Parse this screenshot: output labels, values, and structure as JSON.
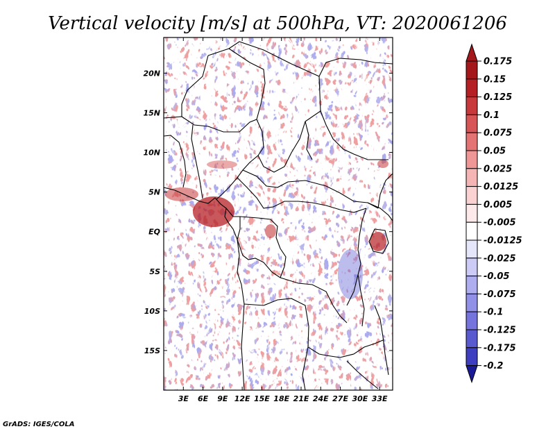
{
  "title": "Vertical velocity [m/s] at 500hPa, VT: 2020061206",
  "credit": "GrADS: IGES/COLA",
  "map": {
    "lon_range": [
      0,
      35
    ],
    "lat_range": [
      -20,
      24.5
    ],
    "lon_ticks": [
      {
        "value": 3,
        "label": "3E"
      },
      {
        "value": 6,
        "label": "6E"
      },
      {
        "value": 9,
        "label": "9E"
      },
      {
        "value": 12,
        "label": "12E"
      },
      {
        "value": 15,
        "label": "15E"
      },
      {
        "value": 18,
        "label": "18E"
      },
      {
        "value": 21,
        "label": "21E"
      },
      {
        "value": 24,
        "label": "24E"
      },
      {
        "value": 27,
        "label": "27E"
      },
      {
        "value": 30,
        "label": "30E"
      },
      {
        "value": 33,
        "label": "33E"
      }
    ],
    "lat_ticks": [
      {
        "value": 20,
        "label": "20N"
      },
      {
        "value": 15,
        "label": "15N"
      },
      {
        "value": 10,
        "label": "10N"
      },
      {
        "value": 5,
        "label": "5N"
      },
      {
        "value": 0,
        "label": "EQ"
      },
      {
        "value": -5,
        "label": "5S"
      },
      {
        "value": -10,
        "label": "10S"
      },
      {
        "value": -15,
        "label": "15S"
      }
    ]
  },
  "colorbar": {
    "levels": [
      {
        "label": "0.175",
        "color": "#a4171b"
      },
      {
        "label": "0.15",
        "color": "#b52024"
      },
      {
        "label": "0.125",
        "color": "#c7393b"
      },
      {
        "label": "0.1",
        "color": "#d75556"
      },
      {
        "label": "0.075",
        "color": "#e47474"
      },
      {
        "label": "0.05",
        "color": "#ef9696"
      },
      {
        "label": "0.025",
        "color": "#f6b5b5"
      },
      {
        "label": "0.0125",
        "color": "#fad2d2"
      },
      {
        "label": "0.005",
        "color": "#fde9e9"
      },
      {
        "label": "-0.005",
        "color": "#ffffff"
      },
      {
        "label": "-0.0125",
        "color": "#e6e6fb"
      },
      {
        "label": "-0.025",
        "color": "#cbcbf6"
      },
      {
        "label": "-0.05",
        "color": "#adadf0"
      },
      {
        "label": "-0.075",
        "color": "#9090e6"
      },
      {
        "label": "-0.1",
        "color": "#7474dc"
      },
      {
        "label": "-0.125",
        "color": "#5a5ad0"
      },
      {
        "label": "-0.175",
        "color": "#3e3ec0"
      },
      {
        "label": "-0.2",
        "color": "#2828ad"
      }
    ],
    "top_color": "#a4171b",
    "bottom_color": "#1a1a96"
  }
}
